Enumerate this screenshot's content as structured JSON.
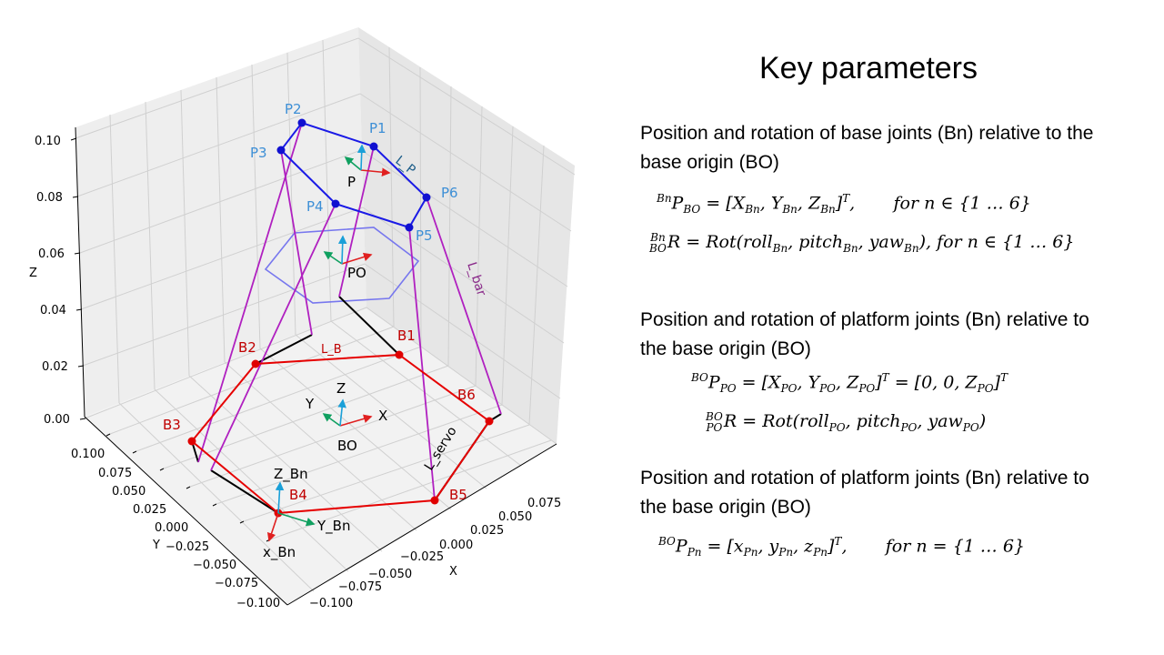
{
  "plot": {
    "z_ticks": [
      "0.10",
      "0.08",
      "0.06",
      "0.04",
      "0.02",
      "0.00"
    ],
    "z_label": "Z",
    "y_ticks": [
      "0.100",
      "0.075",
      "0.050",
      "0.025",
      "0.000",
      "−0.025",
      "−0.050",
      "−0.075",
      "−0.100"
    ],
    "y_label": "Y",
    "x_ticks": [
      "0.075",
      "0.050",
      "0.025",
      "0.000",
      "−0.025",
      "−0.050",
      "−0.075",
      "−0.100"
    ],
    "x_label": "X",
    "platform_points": [
      "P1",
      "P2",
      "P3",
      "P4",
      "P5",
      "P6"
    ],
    "base_points": [
      "B1",
      "B2",
      "B3",
      "B4",
      "B5",
      "B6"
    ],
    "frame_P": "P",
    "frame_PO": "PO",
    "frame_BO": "BO",
    "bo_axes": {
      "x": "X",
      "y": "Y",
      "z": "Z"
    },
    "bn_axes": {
      "x": "x_Bn",
      "y": "Y_Bn",
      "z": "Z_Bn"
    },
    "L_P": "L_P",
    "L_B": "L_B",
    "L_bar": "L_bar",
    "L_servo": "L_servo",
    "colors": {
      "platform": "#1a1ae6",
      "base": "#e60000",
      "bar": "#b020c0",
      "servo": "#000000",
      "po_hex": "#7777ee"
    }
  },
  "panel": {
    "title": "Key parameters",
    "section1": "Position and rotation of base joints (Bn) relative to the base origin (BO)",
    "eq1a_main": "P",
    "eq1a_rest": " = [X",
    "eq1b_prefix_up": "Bn",
    "eq1b_prefix_down": "BO",
    "section2": "Position and rotation of platform joints (Bn) relative to the base origin (BO)",
    "section3": "Position and rotation of platform joints (Bn) relative to the base origin (BO)"
  }
}
